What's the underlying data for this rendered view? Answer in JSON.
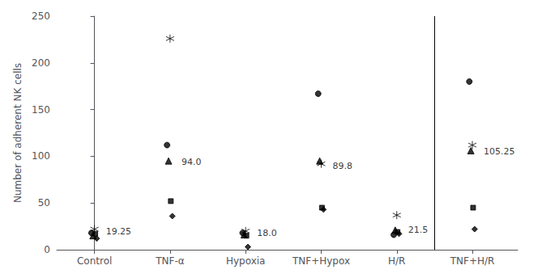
{
  "chart_data": {
    "type": "scatter",
    "categories": [
      "Control",
      "TNF-α",
      "Hypoxia",
      "TNF+Hypox",
      "H/R",
      "TNF+H/R"
    ],
    "series": [
      {
        "marker": "circle",
        "color": "#000000",
        "values": [
          18,
          112,
          18,
          167,
          16,
          180
        ]
      },
      {
        "marker": "triangle",
        "color": "#000000",
        "values": [
          15,
          95,
          16,
          95,
          21,
          106
        ]
      },
      {
        "marker": "square",
        "color": "#000000",
        "values": [
          17,
          52,
          15,
          45,
          19,
          45
        ]
      },
      {
        "marker": "diamond",
        "color": "#000000",
        "values": [
          12,
          36,
          3,
          43,
          17,
          22
        ]
      },
      {
        "marker": "asterisk",
        "color": "#000000",
        "values": [
          22,
          226,
          20,
          92,
          37,
          112
        ]
      }
    ],
    "annotations": [
      {
        "text": "19.25",
        "x": "Control",
        "y": 19.25
      },
      {
        "text": "94.0",
        "x": "TNF-α",
        "y": 94.0
      },
      {
        "text": "18.0",
        "x": "Hypoxia",
        "y": 18.0
      },
      {
        "text": "89.8",
        "x": "TNF+Hypox",
        "y": 89.8
      },
      {
        "text": "21.5",
        "x": "H/R",
        "y": 21.5
      },
      {
        "text": "105.25",
        "x": "TNF+H/R",
        "y": 105.25
      }
    ],
    "ylabel": "Number of adherent NK cells",
    "ylim": [
      0,
      250
    ],
    "yticks": [
      0,
      50,
      100,
      150,
      200,
      250
    ],
    "grid": false
  }
}
